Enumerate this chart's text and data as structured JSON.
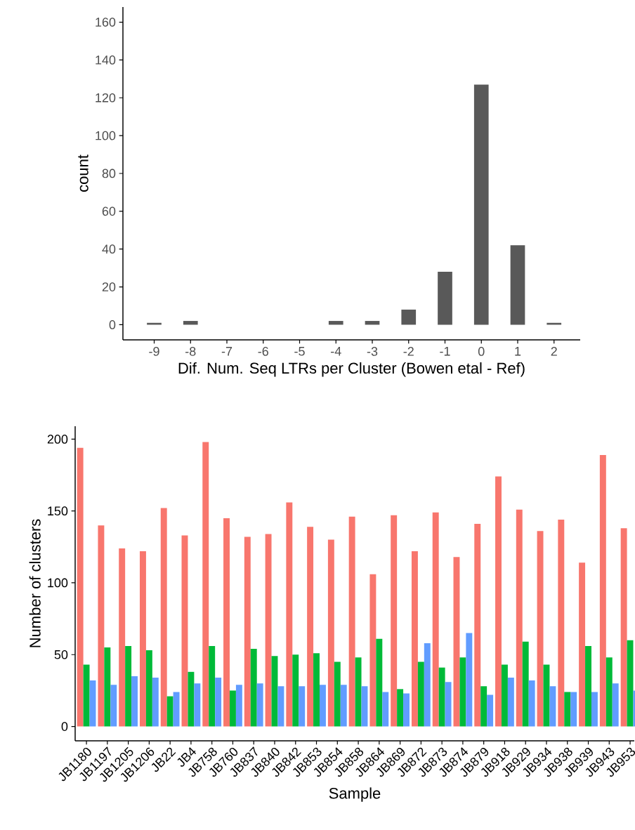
{
  "chart_data": [
    {
      "type": "bar",
      "xlabel": "Dif. Num. Seq LTRs per Cluster (Bowen etal - Ref)",
      "ylabel": "count",
      "color": "#595959",
      "categories": [
        "-9",
        "-8",
        "-7",
        "-6",
        "-5",
        "-4",
        "-3",
        "-2",
        "-1",
        "0",
        "1",
        "2"
      ],
      "values": [
        1,
        2,
        0,
        0,
        0,
        2,
        2,
        8,
        28,
        127,
        42,
        1
      ],
      "ylim": [
        -8,
        168
      ],
      "yticks": [
        0,
        20,
        40,
        60,
        80,
        100,
        120,
        140,
        160
      ]
    },
    {
      "type": "bar",
      "xlabel": "Sample",
      "ylabel": "Number of clusters",
      "categories": [
        "JB1180",
        "JB1197",
        "JB1205",
        "JB1206",
        "JB22",
        "JB4",
        "JB758",
        "JB760",
        "JB837",
        "JB840",
        "JB842",
        "JB853",
        "JB854",
        "JB858",
        "JB864",
        "JB869",
        "JB872",
        "JB873",
        "JB874",
        "JB879",
        "JB918",
        "JB929",
        "JB934",
        "JB938",
        "JB939",
        "JB943",
        "JB953"
      ],
      "series": [
        {
          "color": "#f8766d",
          "values": [
            194,
            140,
            124,
            122,
            152,
            133,
            198,
            145,
            132,
            134,
            156,
            139,
            130,
            146,
            106,
            147,
            122,
            149,
            118,
            141,
            174,
            151,
            136,
            144,
            114,
            189,
            138
          ]
        },
        {
          "color": "#00ba38",
          "values": [
            43,
            55,
            56,
            53,
            21,
            38,
            56,
            25,
            54,
            49,
            50,
            51,
            45,
            48,
            61,
            26,
            45,
            41,
            48,
            28,
            43,
            59,
            43,
            24,
            56,
            48,
            60
          ]
        },
        {
          "color": "#619cff",
          "values": [
            32,
            29,
            35,
            34,
            24,
            30,
            34,
            29,
            30,
            28,
            28,
            29,
            29,
            28,
            24,
            23,
            58,
            31,
            65,
            22,
            34,
            32,
            28,
            24,
            24,
            30,
            25
          ]
        }
      ],
      "ylim": [
        -10,
        209
      ],
      "yticks": [
        0,
        50,
        100,
        150,
        200
      ]
    }
  ]
}
